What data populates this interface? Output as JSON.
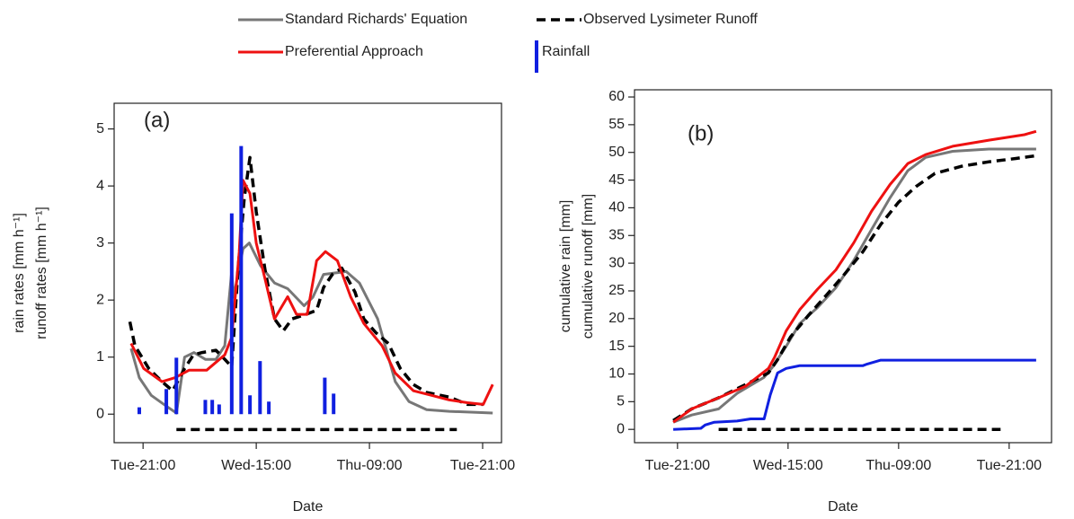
{
  "chart_data": [
    {
      "type": "line",
      "panel_label": "(a)",
      "xlabel": "Date",
      "ylabel": [
        "rain rates [mm h⁻¹]",
        "runoff rates [mm h⁻¹]"
      ],
      "xlim": [
        -4.6,
        57
      ],
      "ylim": [
        -0.5,
        5.45
      ],
      "xticks": [
        {
          "value": 0,
          "label": "Tue-21:00"
        },
        {
          "value": 18,
          "label": "Wed-15:00"
        },
        {
          "value": 36,
          "label": "Thu-09:00"
        },
        {
          "value": 54,
          "label": "Tue-21:00"
        }
      ],
      "yticks": [
        0,
        1,
        2,
        3,
        4,
        5
      ],
      "series": [
        {
          "name": "Standard Richards' Equation",
          "color": "#777777",
          "kind": "line",
          "dash": false,
          "x": [
            -1.9,
            -0.6,
            1.3,
            3.7,
            5.3,
            6.6,
            8.1,
            9.9,
            11.6,
            13,
            14.1,
            14.4,
            15.9,
            16.9,
            18.7,
            20.9,
            23,
            25.6,
            27,
            28.7,
            32.3,
            34.4,
            37.3,
            40.1,
            42.3,
            45.1,
            48.7,
            53,
            55.6
          ],
          "values": [
            1.15,
            0.64,
            0.33,
            0.14,
            0.02,
            1.0,
            1.08,
            0.96,
            0.96,
            1.2,
            2.5,
            2.05,
            2.9,
            3.0,
            2.6,
            2.3,
            2.2,
            1.9,
            2.05,
            2.45,
            2.5,
            2.3,
            1.67,
            0.57,
            0.22,
            0.08,
            0.05,
            0.03,
            0.02
          ]
        },
        {
          "name": "Observed Lysimeter Runoff",
          "color": "#000000",
          "kind": "line",
          "dash": true,
          "x": [
            -2.1,
            -1.3,
            0.9,
            3,
            4.7,
            6.6,
            8,
            9.4,
            11.6,
            13,
            14.1,
            15.1,
            16.1,
            17,
            18,
            19.4,
            20.9,
            22.3,
            23.7,
            25.9,
            27.6,
            28.7,
            30.1,
            31.6,
            33.7,
            35.1,
            37,
            39,
            40.9,
            43,
            45.1,
            48.7,
            51.6,
            54.1
          ],
          "values": [
            1.62,
            1.2,
            0.8,
            0.57,
            0.41,
            0.8,
            1.04,
            1.08,
            1.12,
            0.96,
            0.83,
            2.53,
            3.79,
            4.5,
            3.55,
            2.53,
            1.67,
            1.46,
            1.67,
            1.75,
            1.82,
            2.22,
            2.45,
            2.56,
            2.14,
            1.67,
            1.43,
            1.24,
            0.8,
            0.52,
            0.38,
            0.3,
            0.17,
            0.17
          ]
        },
        {
          "name": "Preferential Approach",
          "color": "#ee1111",
          "kind": "line",
          "dash": false,
          "x": [
            -1.9,
            0.1,
            3,
            5.1,
            7.3,
            10.1,
            13,
            14.1,
            15.3,
            15.9,
            17,
            18,
            19.4,
            20.9,
            23,
            24.4,
            26.1,
            27.6,
            29,
            30.9,
            33,
            35.1,
            38,
            40.1,
            43,
            45.9,
            48.7,
            51.6,
            54.1,
            55.6
          ],
          "values": [
            1.24,
            0.8,
            0.57,
            0.64,
            0.77,
            0.77,
            1.04,
            1.35,
            2.85,
            4.1,
            3.87,
            3.0,
            2.37,
            1.67,
            2.06,
            1.75,
            1.75,
            2.69,
            2.85,
            2.69,
            2.06,
            1.59,
            1.2,
            0.72,
            0.41,
            0.33,
            0.25,
            0.2,
            0.17,
            0.52
          ]
        },
        {
          "name": "Rainfall",
          "color": "#1020e0",
          "kind": "bar",
          "dash": false,
          "x": [
            -0.6,
            3.7,
            5.3,
            9.9,
            11,
            12.1,
            14.1,
            15.6,
            17,
            18.6,
            20,
            28.9,
            30.3
          ],
          "values": [
            0.12,
            0.44,
            0.99,
            0.25,
            0.25,
            0.17,
            3.52,
            4.7,
            0.33,
            0.93,
            0.22,
            0.64,
            0.36
          ]
        },
        {
          "color": "#000000",
          "kind": "line",
          "dash": true,
          "x": [
            5.3,
            49.9
          ],
          "values": [
            -0.27,
            -0.27
          ]
        }
      ]
    },
    {
      "type": "line",
      "panel_label": "(b)",
      "xlabel": "Date",
      "ylabel": [
        "cumulative rain [mm]",
        "cumulative runoff [mm]"
      ],
      "xlim": [
        -7.0,
        60.9
      ],
      "ylim": [
        -2.4,
        61.3
      ],
      "xticks": [
        {
          "value": 0,
          "label": "Tue-21:00"
        },
        {
          "value": 18,
          "label": "Wed-15:00"
        },
        {
          "value": 36,
          "label": "Thu-09:00"
        },
        {
          "value": 54,
          "label": "Tue-21:00"
        }
      ],
      "yticks": [
        0,
        5,
        10,
        15,
        20,
        25,
        30,
        35,
        40,
        45,
        50,
        55,
        60
      ],
      "series": [
        {
          "color": "#777777",
          "kind": "line",
          "dash": false,
          "x": [
            -0.7,
            2.3,
            6.7,
            9.7,
            14.1,
            15.5,
            17.7,
            19.9,
            22.8,
            25.8,
            28.7,
            31.6,
            34.6,
            37.5,
            40.4,
            44.8,
            50.7,
            58.4
          ],
          "values": [
            1.3,
            2.6,
            3.7,
            6.5,
            9.4,
            11.3,
            15,
            19.1,
            22,
            25.6,
            30.5,
            36.1,
            41.8,
            46.7,
            49.1,
            50.2,
            50.6,
            50.6
          ]
        },
        {
          "color": "#000000",
          "kind": "line",
          "dash": true,
          "x": [
            -0.7,
            2.3,
            6.7,
            11.1,
            14.8,
            16.3,
            18.4,
            21.4,
            24.3,
            27.2,
            30.2,
            33.1,
            36,
            38.9,
            41.9,
            46.3,
            50.7,
            55.1,
            58.4
          ],
          "values": [
            1.6,
            3.7,
            5.7,
            8.1,
            10.2,
            12.6,
            16.7,
            20.7,
            24.3,
            28,
            32.1,
            37,
            41,
            43.9,
            46.2,
            47.5,
            48.3,
            48.9,
            49.4
          ]
        },
        {
          "color": "#ee1111",
          "kind": "line",
          "dash": false,
          "x": [
            -0.7,
            2.3,
            6.7,
            11.1,
            14.8,
            15.8,
            17.7,
            19.9,
            22.8,
            25.8,
            28.7,
            31.6,
            34.6,
            37.5,
            40.4,
            44.8,
            50.7,
            56.5,
            58.4
          ],
          "values": [
            1.3,
            3.7,
            5.7,
            7.8,
            11,
            13,
            17.8,
            21.6,
            25.3,
            28.8,
            33.7,
            39.4,
            44.2,
            48,
            49.6,
            51.1,
            52.2,
            53.2,
            53.8
          ]
        },
        {
          "color": "#1020e0",
          "kind": "line",
          "dash": false,
          "x": [
            -0.7,
            3.8,
            4.5,
            6,
            9.7,
            11.9,
            14.1,
            15.1,
            16.3,
            17.7,
            19.9,
            24.3,
            30.2,
            30.9,
            33.1,
            36,
            58.4
          ],
          "values": [
            0,
            0.2,
            0.8,
            1.3,
            1.5,
            1.9,
            1.9,
            6.2,
            10.2,
            11,
            11.5,
            11.5,
            11.5,
            11.8,
            12.5,
            12.5,
            12.5
          ]
        },
        {
          "color": "#000000",
          "kind": "line",
          "dash": true,
          "x": [
            6.7,
            52.6
          ],
          "values": [
            0,
            0
          ]
        }
      ]
    }
  ]
}
